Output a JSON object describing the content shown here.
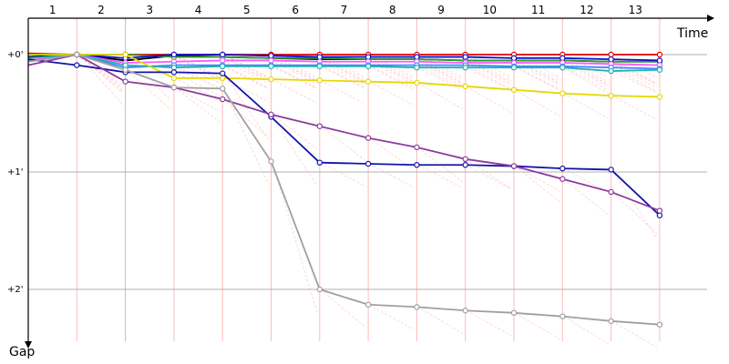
{
  "chart_data": {
    "type": "line",
    "xlabel": "Time",
    "ylabel": "Gap",
    "x_ticks": [
      "1",
      "2",
      "3",
      "4",
      "5",
      "6",
      "7",
      "8",
      "9",
      "10",
      "11",
      "12",
      "13"
    ],
    "y_ticks": [
      {
        "label": "+0'",
        "value": 0
      },
      {
        "label": "+1'",
        "value": 1
      },
      {
        "label": "+2'",
        "value": 2
      }
    ],
    "ylim": [
      -0.2,
      2.45
    ],
    "y_inverted": true,
    "grid": true,
    "series": [
      {
        "color": "#e00000",
        "values": [
          -0.01,
          0.0,
          0.0,
          0.0,
          0.0,
          0.0,
          0.0,
          0.0,
          0.0,
          0.0,
          0.0,
          0.0,
          0.0,
          0.0
        ]
      },
      {
        "color": "#000000",
        "values": [
          0.02,
          0.0,
          0.05,
          0.01,
          0.02,
          0.03,
          0.04,
          0.04,
          0.04,
          0.05,
          0.05,
          0.05,
          0.06,
          0.06
        ]
      },
      {
        "color": "#2ca02c",
        "values": [
          0.0,
          0.0,
          0.0,
          0.02,
          0.02,
          0.03,
          0.03,
          0.04,
          0.04,
          0.05,
          0.05,
          0.05,
          0.06,
          0.06
        ]
      },
      {
        "color": "#1010cc",
        "values": [
          0.0,
          0.0,
          0.03,
          0.0,
          0.0,
          0.01,
          0.02,
          0.02,
          0.02,
          0.02,
          0.03,
          0.03,
          0.04,
          0.05
        ]
      },
      {
        "color": "#ff55ff",
        "values": [
          0.05,
          0.0,
          0.07,
          0.06,
          0.05,
          0.05,
          0.06,
          0.06,
          0.06,
          0.07,
          0.07,
          0.07,
          0.08,
          0.09
        ]
      },
      {
        "color": "#4488ff",
        "values": [
          0.03,
          0.0,
          0.11,
          0.09,
          0.09,
          0.09,
          0.09,
          0.09,
          0.09,
          0.09,
          0.1,
          0.1,
          0.11,
          0.12
        ]
      },
      {
        "color": "#20b0b0",
        "values": [
          0.03,
          0.0,
          0.09,
          0.11,
          0.1,
          0.1,
          0.1,
          0.1,
          0.11,
          0.11,
          0.11,
          0.11,
          0.14,
          0.13
        ]
      },
      {
        "color": "#e6d800",
        "values": [
          0.0,
          0.0,
          0.0,
          0.2,
          0.2,
          0.21,
          0.22,
          0.23,
          0.24,
          0.27,
          0.3,
          0.33,
          0.35,
          0.36
        ]
      },
      {
        "color": "#1414aa",
        "values": [
          0.04,
          0.09,
          0.15,
          0.15,
          0.16,
          0.53,
          0.92,
          0.93,
          0.94,
          0.94,
          0.95,
          0.97,
          0.98,
          1.37
        ]
      },
      {
        "color": "#8e3a9e",
        "values": [
          0.09,
          0.0,
          0.23,
          0.28,
          0.38,
          0.51,
          0.61,
          0.71,
          0.79,
          0.89,
          0.95,
          1.06,
          1.17,
          1.33
        ]
      },
      {
        "color": "#a0a0a0",
        "values": [
          0.06,
          0.0,
          0.13,
          0.28,
          0.29,
          0.91,
          2.0,
          2.13,
          2.15,
          2.18,
          2.2,
          2.23,
          2.27,
          2.3
        ]
      }
    ]
  },
  "colors": {
    "gridline": "#b0b0b0",
    "pit_line": "#ffaaaa",
    "vertical_special": "#88cc88",
    "axis": "#000000"
  }
}
